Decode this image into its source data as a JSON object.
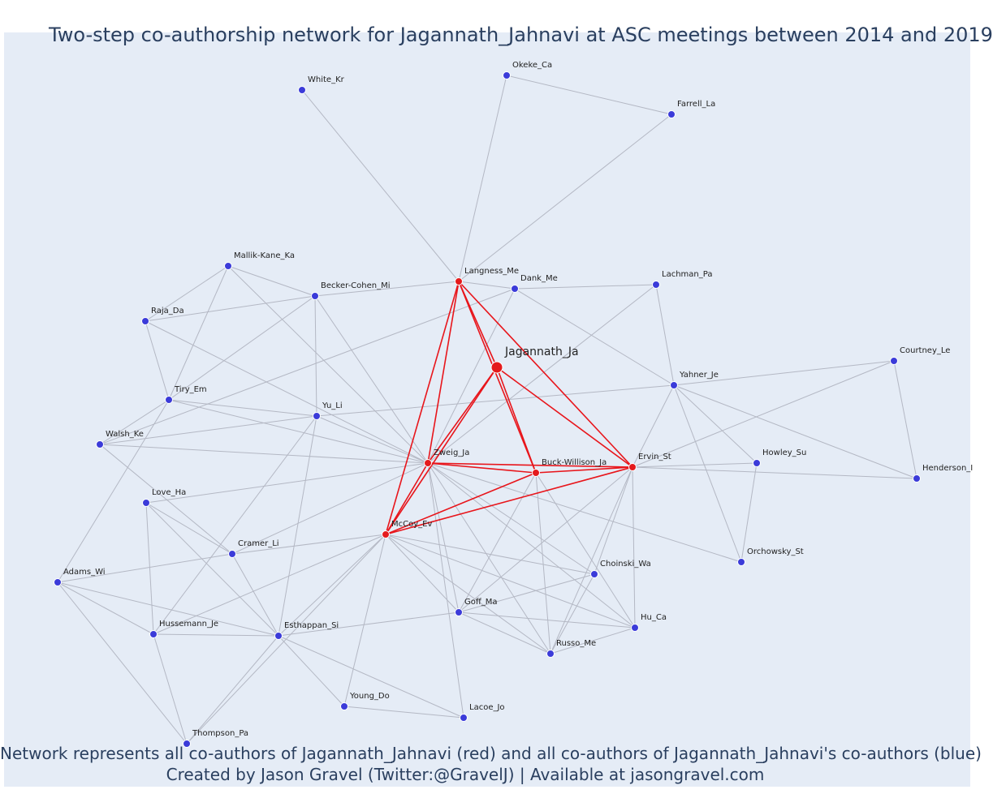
{
  "title": "Two-step co-authorship network for Jagannath_Jahnavi at ASC meetings between 2014 and 2019",
  "caption_line1": "Network represents all co-authors of Jagannath_Jahnavi (red) and all co-authors of Jagannath_Jahnavi's co-authors (blue)",
  "caption_line2": "Created by Jason Gravel (Twitter:@GravelJ) | Available at jasongravel.com",
  "colors": {
    "background": "#e5ecf6",
    "first_degree": "#e41a1c",
    "second_degree": "#3b3bd9",
    "red_edge": "#e8151b",
    "grey_edge": "#b4b8c4",
    "text": "#2a3f5f"
  },
  "chart_data": {
    "type": "network",
    "focal_node": "Jagannath_Ja",
    "nodes": [
      {
        "id": "Jagannath_Ja",
        "label": "Jagannath_Ja",
        "group": "focal"
      },
      {
        "id": "Langness_Me",
        "label": "Langness_Me",
        "group": "red"
      },
      {
        "id": "Zweig_Ja",
        "label": "Zweig_Ja",
        "group": "red"
      },
      {
        "id": "Buck-Willison_Ja",
        "label": "Buck-Willison_Ja",
        "group": "red"
      },
      {
        "id": "Ervin_St",
        "label": "Ervin_St",
        "group": "red"
      },
      {
        "id": "McCoy_Ev",
        "label": "McCoy_Ev",
        "group": "red"
      },
      {
        "id": "White_Kr",
        "label": "White_Kr",
        "group": "blue"
      },
      {
        "id": "Okeke_Ca",
        "label": "Okeke_Ca",
        "group": "blue"
      },
      {
        "id": "Farrell_La",
        "label": "Farrell_La",
        "group": "blue"
      },
      {
        "id": "Mallik-Kane_Ka",
        "label": "Mallik-Kane_Ka",
        "group": "blue"
      },
      {
        "id": "Becker-Cohen_Mi",
        "label": "Becker-Cohen_Mi",
        "group": "blue"
      },
      {
        "id": "Dank_Me",
        "label": "Dank_Me",
        "group": "blue"
      },
      {
        "id": "Lachman_Pa",
        "label": "Lachman_Pa",
        "group": "blue"
      },
      {
        "id": "Raja_Da",
        "label": "Raja_Da",
        "group": "blue"
      },
      {
        "id": "Courtney_Le",
        "label": "Courtney_Le",
        "group": "blue"
      },
      {
        "id": "Yahner_Je",
        "label": "Yahner_Je",
        "group": "blue"
      },
      {
        "id": "Tiry_Em",
        "label": "Tiry_Em",
        "group": "blue"
      },
      {
        "id": "Yu_Li",
        "label": "Yu_Li",
        "group": "blue"
      },
      {
        "id": "Walsh_Ke",
        "label": "Walsh_Ke",
        "group": "blue"
      },
      {
        "id": "Howley_Su",
        "label": "Howley_Su",
        "group": "blue"
      },
      {
        "id": "Henderson_I",
        "label": "Henderson_I",
        "group": "blue"
      },
      {
        "id": "Love_Ha",
        "label": "Love_Ha",
        "group": "blue"
      },
      {
        "id": "Cramer_Li",
        "label": "Cramer_Li",
        "group": "blue"
      },
      {
        "id": "Orchowsky_St",
        "label": "Orchowsky_St",
        "group": "blue"
      },
      {
        "id": "Choinski_Wa",
        "label": "Choinski_Wa",
        "group": "blue"
      },
      {
        "id": "Adams_Wi",
        "label": "Adams_Wi",
        "group": "blue"
      },
      {
        "id": "Goff_Ma",
        "label": "Goff_Ma",
        "group": "blue"
      },
      {
        "id": "Hu_Ca",
        "label": "Hu_Ca",
        "group": "blue"
      },
      {
        "id": "Hussemann_Je",
        "label": "Hussemann_Je",
        "group": "blue"
      },
      {
        "id": "Esthappan_Si",
        "label": "Esthappan_Si",
        "group": "blue"
      },
      {
        "id": "Russo_Me",
        "label": "Russo_Me",
        "group": "blue"
      },
      {
        "id": "Young_Do",
        "label": "Young_Do",
        "group": "blue"
      },
      {
        "id": "Lacoe_Jo",
        "label": "Lacoe_Jo",
        "group": "blue"
      },
      {
        "id": "Thompson_Pa",
        "label": "Thompson_Pa",
        "group": "blue"
      }
    ],
    "red_edges": [
      [
        "Jagannath_Ja",
        "Langness_Me"
      ],
      [
        "Jagannath_Ja",
        "Zweig_Ja"
      ],
      [
        "Jagannath_Ja",
        "Buck-Willison_Ja"
      ],
      [
        "Jagannath_Ja",
        "Ervin_St"
      ],
      [
        "Jagannath_Ja",
        "McCoy_Ev"
      ],
      [
        "Langness_Me",
        "Zweig_Ja"
      ],
      [
        "Langness_Me",
        "McCoy_Ev"
      ],
      [
        "Langness_Me",
        "Buck-Willison_Ja"
      ],
      [
        "Langness_Me",
        "Ervin_St"
      ],
      [
        "Zweig_Ja",
        "Buck-Willison_Ja"
      ],
      [
        "Zweig_Ja",
        "Ervin_St"
      ],
      [
        "Zweig_Ja",
        "McCoy_Ev"
      ],
      [
        "McCoy_Ev",
        "Buck-Willison_Ja"
      ],
      [
        "McCoy_Ev",
        "Ervin_St"
      ],
      [
        "Buck-Willison_Ja",
        "Ervin_St"
      ]
    ],
    "grey_edges": [
      [
        "White_Kr",
        "Langness_Me"
      ],
      [
        "Okeke_Ca",
        "Langness_Me"
      ],
      [
        "Okeke_Ca",
        "Farrell_La"
      ],
      [
        "Farrell_La",
        "Langness_Me"
      ],
      [
        "Mallik-Kane_Ka",
        "Raja_Da"
      ],
      [
        "Mallik-Kane_Ka",
        "Becker-Cohen_Mi"
      ],
      [
        "Mallik-Kane_Ka",
        "Tiry_Em"
      ],
      [
        "Mallik-Kane_Ka",
        "Zweig_Ja"
      ],
      [
        "Raja_Da",
        "Becker-Cohen_Mi"
      ],
      [
        "Raja_Da",
        "Tiry_Em"
      ],
      [
        "Raja_Da",
        "Zweig_Ja"
      ],
      [
        "Becker-Cohen_Mi",
        "Tiry_Em"
      ],
      [
        "Becker-Cohen_Mi",
        "Yu_Li"
      ],
      [
        "Becker-Cohen_Mi",
        "Zweig_Ja"
      ],
      [
        "Becker-Cohen_Mi",
        "Langness_Me"
      ],
      [
        "Dank_Me",
        "Langness_Me"
      ],
      [
        "Dank_Me",
        "Lachman_Pa"
      ],
      [
        "Dank_Me",
        "Yahner_Je"
      ],
      [
        "Dank_Me",
        "Zweig_Ja"
      ],
      [
        "Dank_Me",
        "Walsh_Ke"
      ],
      [
        "Lachman_Pa",
        "Yahner_Je"
      ],
      [
        "Lachman_Pa",
        "Zweig_Ja"
      ],
      [
        "Courtney_Le",
        "Yahner_Je"
      ],
      [
        "Courtney_Le",
        "Henderson_I"
      ],
      [
        "Courtney_Le",
        "Ervin_St"
      ],
      [
        "Yahner_Je",
        "Yu_Li"
      ],
      [
        "Yahner_Je",
        "Ervin_St"
      ],
      [
        "Yahner_Je",
        "Howley_Su"
      ],
      [
        "Yahner_Je",
        "Orchowsky_St"
      ],
      [
        "Yahner_Je",
        "Henderson_I"
      ],
      [
        "Tiry_Em",
        "Zweig_Ja"
      ],
      [
        "Tiry_Em",
        "Walsh_Ke"
      ],
      [
        "Tiry_Em",
        "Adams_Wi"
      ],
      [
        "Tiry_Em",
        "Yu_Li"
      ],
      [
        "Yu_Li",
        "Zweig_Ja"
      ],
      [
        "Yu_Li",
        "Walsh_Ke"
      ],
      [
        "Yu_Li",
        "Hussemann_Je"
      ],
      [
        "Yu_Li",
        "Esthappan_Si"
      ],
      [
        "Walsh_Ke",
        "Zweig_Ja"
      ],
      [
        "Walsh_Ke",
        "Cramer_Li"
      ],
      [
        "Ervin_St",
        "Howley_Su"
      ],
      [
        "Ervin_St",
        "Henderson_I"
      ],
      [
        "Ervin_St",
        "Choinski_Wa"
      ],
      [
        "Ervin_St",
        "Goff_Ma"
      ],
      [
        "Ervin_St",
        "Hu_Ca"
      ],
      [
        "Ervin_St",
        "Russo_Me"
      ],
      [
        "Howley_Su",
        "Orchowsky_St"
      ],
      [
        "Love_Ha",
        "Zweig_Ja"
      ],
      [
        "Love_Ha",
        "Cramer_Li"
      ],
      [
        "Love_Ha",
        "Esthappan_Si"
      ],
      [
        "Love_Ha",
        "Hussemann_Je"
      ],
      [
        "Cramer_Li",
        "Zweig_Ja"
      ],
      [
        "Cramer_Li",
        "Adams_Wi"
      ],
      [
        "Cramer_Li",
        "Esthappan_Si"
      ],
      [
        "Cramer_Li",
        "McCoy_Ev"
      ],
      [
        "Adams_Wi",
        "Esthappan_Si"
      ],
      [
        "Adams_Wi",
        "Hussemann_Je"
      ],
      [
        "Adams_Wi",
        "Thompson_Pa"
      ],
      [
        "Zweig_Ja",
        "Orchowsky_St"
      ],
      [
        "Zweig_Ja",
        "Choinski_Wa"
      ],
      [
        "Zweig_Ja",
        "Goff_Ma"
      ],
      [
        "Zweig_Ja",
        "Hu_Ca"
      ],
      [
        "Zweig_Ja",
        "Russo_Me"
      ],
      [
        "Zweig_Ja",
        "Lacoe_Jo"
      ],
      [
        "McCoy_Ev",
        "Choinski_Wa"
      ],
      [
        "McCoy_Ev",
        "Goff_Ma"
      ],
      [
        "McCoy_Ev",
        "Hu_Ca"
      ],
      [
        "McCoy_Ev",
        "Russo_Me"
      ],
      [
        "McCoy_Ev",
        "Young_Do"
      ],
      [
        "McCoy_Ev",
        "Esthappan_Si"
      ],
      [
        "McCoy_Ev",
        "Hussemann_Je"
      ],
      [
        "McCoy_Ev",
        "Thompson_Pa"
      ],
      [
        "Buck-Willison_Ja",
        "Goff_Ma"
      ],
      [
        "Buck-Willison_Ja",
        "Russo_Me"
      ],
      [
        "Buck-Willison_Ja",
        "Hu_Ca"
      ],
      [
        "Choinski_Wa",
        "Goff_Ma"
      ],
      [
        "Choinski_Wa",
        "Russo_Me"
      ],
      [
        "Goff_Ma",
        "Esthappan_Si"
      ],
      [
        "Goff_Ma",
        "Hu_Ca"
      ],
      [
        "Goff_Ma",
        "Russo_Me"
      ],
      [
        "Hu_Ca",
        "Russo_Me"
      ],
      [
        "Hussemann_Je",
        "Esthappan_Si"
      ],
      [
        "Hussemann_Je",
        "Thompson_Pa"
      ],
      [
        "Esthappan_Si",
        "Young_Do"
      ],
      [
        "Esthappan_Si",
        "Lacoe_Jo"
      ],
      [
        "Esthappan_Si",
        "Thompson_Pa"
      ],
      [
        "Young_Do",
        "Lacoe_Jo"
      ]
    ]
  }
}
